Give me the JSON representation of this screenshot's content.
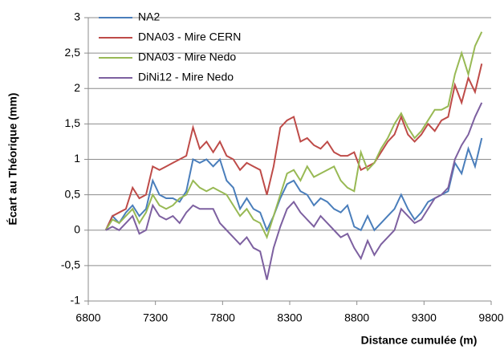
{
  "chart_data": {
    "type": "line",
    "x_label": "Distance cumulée (m)",
    "y_label": "Écart au Théorique (mm)",
    "x": [
      6930,
      6980,
      7030,
      7080,
      7130,
      7180,
      7230,
      7280,
      7330,
      7380,
      7430,
      7480,
      7530,
      7580,
      7630,
      7680,
      7730,
      7780,
      7830,
      7880,
      7930,
      7980,
      8030,
      8080,
      8130,
      8180,
      8230,
      8280,
      8330,
      8380,
      8430,
      8480,
      8530,
      8580,
      8630,
      8680,
      8730,
      8780,
      8830,
      8880,
      8930,
      8980,
      9030,
      9080,
      9130,
      9180,
      9230,
      9280,
      9330,
      9380,
      9430,
      9480,
      9530,
      9580,
      9630,
      9680,
      9730
    ],
    "series": [
      {
        "name": "NA2",
        "color": "#4a7ebb",
        "values": [
          0,
          0.2,
          0.1,
          0.25,
          0.35,
          0.2,
          0.3,
          0.7,
          0.5,
          0.45,
          0.45,
          0.4,
          0.55,
          1.0,
          0.95,
          1.0,
          0.9,
          1.0,
          0.7,
          0.6,
          0.3,
          0.45,
          0.3,
          0.25,
          0.0,
          0.2,
          0.45,
          0.65,
          0.7,
          0.55,
          0.5,
          0.35,
          0.45,
          0.4,
          0.3,
          0.25,
          0.35,
          0.05,
          0.0,
          0.2,
          0.0,
          0.1,
          0.2,
          0.3,
          0.5,
          0.3,
          0.15,
          0.25,
          0.4,
          0.45,
          0.5,
          0.55,
          0.95,
          0.8,
          1.15,
          0.9,
          1.3
        ]
      },
      {
        "name": "DNA03 - Mire CERN",
        "color": "#be4b48",
        "values": [
          0,
          0.2,
          0.25,
          0.3,
          0.6,
          0.45,
          0.5,
          0.9,
          0.85,
          0.9,
          0.95,
          1.0,
          1.05,
          1.45,
          1.15,
          1.25,
          1.1,
          1.25,
          1.05,
          1.0,
          0.85,
          0.95,
          0.9,
          0.85,
          0.5,
          0.9,
          1.45,
          1.55,
          1.6,
          1.25,
          1.3,
          1.2,
          1.15,
          1.25,
          1.1,
          1.05,
          1.05,
          1.1,
          0.85,
          0.9,
          0.95,
          1.1,
          1.25,
          1.35,
          1.6,
          1.35,
          1.25,
          1.35,
          1.5,
          1.4,
          1.55,
          1.6,
          2.05,
          1.8,
          2.15,
          1.95,
          2.35
        ]
      },
      {
        "name": "DNA03 - Mire Nedo",
        "color": "#98b954",
        "values": [
          0,
          0.15,
          0.1,
          0.2,
          0.3,
          0.1,
          0.25,
          0.5,
          0.35,
          0.3,
          0.35,
          0.45,
          0.5,
          0.7,
          0.6,
          0.55,
          0.6,
          0.55,
          0.5,
          0.35,
          0.2,
          0.3,
          0.15,
          0.1,
          -0.1,
          0.2,
          0.5,
          0.8,
          0.85,
          0.7,
          0.9,
          0.75,
          0.8,
          0.85,
          0.9,
          0.7,
          0.6,
          0.55,
          1.1,
          0.85,
          0.95,
          1.15,
          1.3,
          1.5,
          1.65,
          1.45,
          1.3,
          1.4,
          1.55,
          1.7,
          1.7,
          1.75,
          2.2,
          2.5,
          2.2,
          2.6,
          2.8
        ]
      },
      {
        "name": "DiNi12 - Mire Nedo",
        "color": "#7d60a0",
        "values": [
          0,
          0.05,
          0.0,
          0.1,
          0.2,
          -0.05,
          0.0,
          0.35,
          0.2,
          0.15,
          0.2,
          0.1,
          0.25,
          0.35,
          0.3,
          0.3,
          0.3,
          0.1,
          0.0,
          -0.1,
          -0.2,
          -0.1,
          -0.25,
          -0.3,
          -0.7,
          -0.25,
          0.05,
          0.3,
          0.4,
          0.25,
          0.15,
          0.05,
          0.2,
          0.1,
          0.0,
          -0.1,
          -0.05,
          -0.25,
          -0.4,
          -0.15,
          -0.35,
          -0.2,
          -0.1,
          0.0,
          0.3,
          0.2,
          0.1,
          0.15,
          0.3,
          0.45,
          0.5,
          0.6,
          1.0,
          1.2,
          1.35,
          1.6,
          1.8
        ]
      }
    ],
    "xlim": [
      6800,
      9800
    ],
    "xticks": [
      6800,
      7300,
      7800,
      8300,
      8800,
      9300,
      9800
    ],
    "ylim": [
      -1,
      3
    ],
    "yticks": [
      -1,
      {
        "value": -0.5,
        "label": "-0,5"
      },
      0,
      {
        "value": 0.5,
        "label": "0,5"
      },
      1,
      {
        "value": 1.5,
        "label": "1,5"
      },
      2,
      {
        "value": 2.5,
        "label": "2,5"
      },
      3
    ],
    "grid": true,
    "legend": "top-left"
  }
}
